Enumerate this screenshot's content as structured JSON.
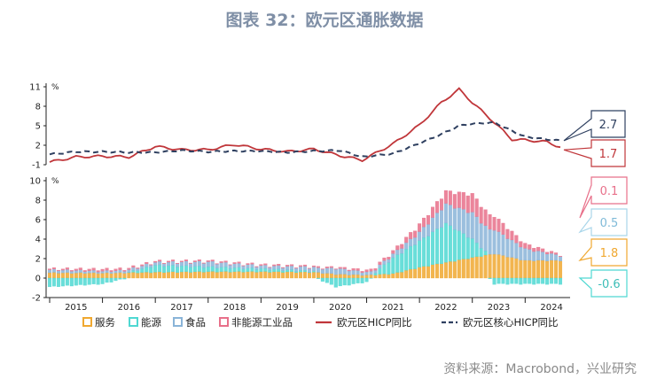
{
  "title": "图表 32：欧元区通胀数据",
  "source": "资料来源：Macrobond，兴业研究",
  "colors": {
    "services": "#f0a830",
    "energy": "#4fd8d2",
    "food": "#8ab4d8",
    "nonenergy": "#e8708a",
    "hicp": "#c0363a",
    "core": "#2f4060"
  },
  "chart_data": [
    {
      "type": "line",
      "unit": "%",
      "ylim": [
        -1,
        11
      ],
      "yticks": [
        -1,
        2,
        5,
        8,
        11
      ],
      "series": [
        {
          "name": "欧元区HICP同比",
          "x": [
            "2015-01",
            "2015-07",
            "2016-01",
            "2016-07",
            "2017-01",
            "2017-07",
            "2018-01",
            "2018-07",
            "2019-01",
            "2019-07",
            "2020-01",
            "2020-07",
            "2020-12",
            "2021-07",
            "2022-01",
            "2022-06",
            "2022-10",
            "2023-01",
            "2023-06",
            "2023-10",
            "2024-01",
            "2024-06",
            "2024-09"
          ],
          "values": [
            -0.6,
            0.2,
            0.3,
            0.2,
            1.8,
            1.3,
            1.3,
            2.1,
            1.4,
            1.0,
            1.4,
            0.4,
            -0.3,
            2.2,
            5.1,
            8.6,
            10.6,
            8.6,
            5.5,
            2.9,
            2.8,
            2.5,
            1.7
          ]
        },
        {
          "name": "欧元区核心HICP同比",
          "x": [
            "2015-01",
            "2015-07",
            "2016-01",
            "2016-07",
            "2017-01",
            "2017-07",
            "2018-01",
            "2018-07",
            "2019-01",
            "2019-07",
            "2020-01",
            "2020-07",
            "2020-12",
            "2021-07",
            "2022-01",
            "2022-06",
            "2022-10",
            "2023-01",
            "2023-06",
            "2023-10",
            "2024-01",
            "2024-06",
            "2024-09"
          ],
          "values": [
            0.6,
            1.0,
            1.0,
            0.9,
            0.9,
            1.2,
            1.0,
            1.1,
            1.1,
            0.9,
            1.1,
            1.2,
            0.2,
            0.7,
            2.3,
            3.7,
            5.0,
            5.3,
            5.5,
            4.2,
            3.3,
            2.9,
            2.7
          ]
        }
      ],
      "callouts": [
        {
          "series": "欧元区核心HICP同比",
          "label": "2.7"
        },
        {
          "series": "欧元区HICP同比",
          "label": "1.7"
        }
      ]
    },
    {
      "type": "bar",
      "stacked": true,
      "unit": "%",
      "ylim": [
        -2,
        10
      ],
      "yticks": [
        -2,
        0,
        2,
        4,
        6,
        8,
        10
      ],
      "xtick_labels": [
        "2015",
        "2016",
        "2017",
        "2018",
        "2019",
        "2020",
        "2021",
        "2022",
        "2023",
        "2024"
      ],
      "series": [
        {
          "name": "服务",
          "x": [
            "2015-01",
            "2016-01",
            "2017-01",
            "2018-01",
            "2019-01",
            "2020-01",
            "2020-06",
            "2021-01",
            "2021-07",
            "2022-01",
            "2022-07",
            "2023-01",
            "2023-06",
            "2024-01",
            "2024-09"
          ],
          "values": [
            0.55,
            0.5,
            0.6,
            0.65,
            0.65,
            0.6,
            0.4,
            0.3,
            0.45,
            1.1,
            1.6,
            2.1,
            2.5,
            1.8,
            1.8
          ]
        },
        {
          "name": "能源",
          "x": [
            "2015-01",
            "2016-01",
            "2017-01",
            "2018-01",
            "2019-01",
            "2020-01",
            "2020-06",
            "2021-01",
            "2021-07",
            "2022-01",
            "2022-07",
            "2023-01",
            "2023-06",
            "2024-01",
            "2024-09"
          ],
          "values": [
            -0.9,
            -0.6,
            0.7,
            0.5,
            0.3,
            0.1,
            -0.9,
            -0.4,
            1.6,
            2.7,
            4.0,
            1.9,
            -0.6,
            -0.6,
            -0.6
          ]
        },
        {
          "name": "食品",
          "x": [
            "2015-01",
            "2016-01",
            "2017-01",
            "2018-01",
            "2019-01",
            "2020-01",
            "2020-06",
            "2021-01",
            "2021-07",
            "2022-01",
            "2022-07",
            "2023-01",
            "2023-06",
            "2024-01",
            "2024-09"
          ],
          "values": [
            0.3,
            0.2,
            0.3,
            0.5,
            0.3,
            0.4,
            0.6,
            0.3,
            0.4,
            0.9,
            2.0,
            2.7,
            2.5,
            1.2,
            0.5
          ]
        },
        {
          "name": "非能源工业品",
          "x": [
            "2015-01",
            "2016-01",
            "2017-01",
            "2018-01",
            "2019-01",
            "2020-01",
            "2020-06",
            "2021-01",
            "2021-07",
            "2022-01",
            "2022-07",
            "2023-01",
            "2023-06",
            "2024-01",
            "2024-09"
          ],
          "values": [
            0.1,
            0.2,
            0.1,
            0.1,
            0.1,
            0.1,
            0.1,
            0.2,
            0.3,
            0.8,
            1.3,
            1.9,
            1.4,
            0.5,
            0.1
          ]
        }
      ],
      "callouts": [
        {
          "series": "非能源工业品",
          "label": "0.1"
        },
        {
          "series": "食品",
          "label": "0.5"
        },
        {
          "series": "服务",
          "label": "1.8"
        },
        {
          "series": "能源",
          "label": "-0.6"
        }
      ]
    }
  ],
  "legend": [
    {
      "key": "services",
      "label": "服务",
      "kind": "box"
    },
    {
      "key": "energy",
      "label": "能源",
      "kind": "box"
    },
    {
      "key": "food",
      "label": "食品",
      "kind": "box"
    },
    {
      "key": "nonenergy",
      "label": "非能源工业品",
      "kind": "box"
    },
    {
      "key": "hicp",
      "label": "欧元区HICP同比",
      "kind": "line"
    },
    {
      "key": "core",
      "label": "欧元区核心HICP同比",
      "kind": "dash"
    }
  ]
}
